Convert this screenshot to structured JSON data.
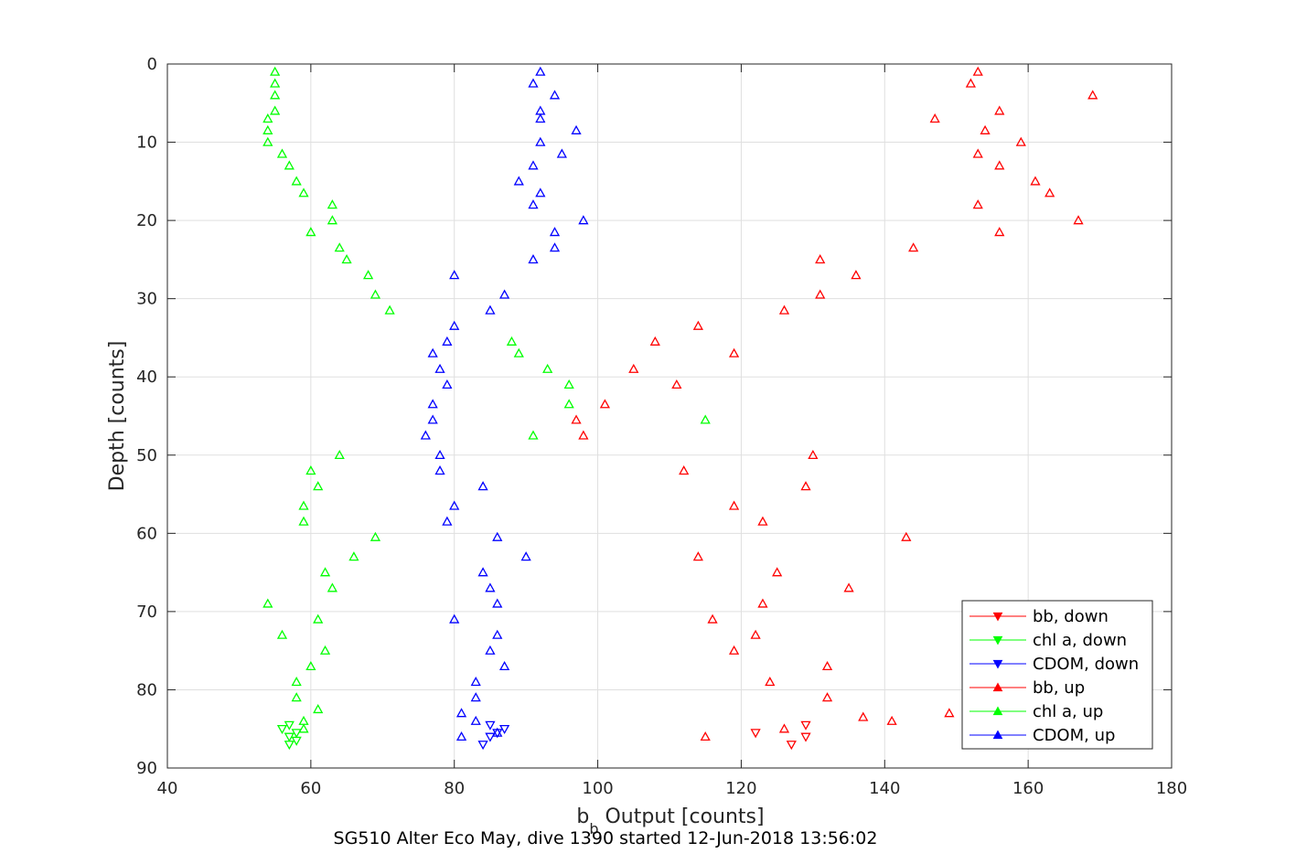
{
  "chart_data": {
    "type": "scatter",
    "xlabel_main": "b",
    "xlabel_sub": "b",
    "xlabel_rest": " Output [counts]",
    "ylabel": "Depth [counts]",
    "caption": "SG510 Alter Eco May, dive 1390 started 12-Jun-2018 13:56:02",
    "xlim": [
      40,
      180
    ],
    "ylim": [
      0,
      90
    ],
    "y_reversed": true,
    "grid": true,
    "legend_position": "bottom-right",
    "x_ticks": [
      "40",
      "60",
      "80",
      "100",
      "120",
      "140",
      "160",
      "180"
    ],
    "y_ticks": [
      "0",
      "10",
      "20",
      "30",
      "40",
      "50",
      "60",
      "70",
      "80",
      "90"
    ],
    "legend": [
      {
        "label": "bb, down",
        "color": "#ff0000",
        "marker": "down"
      },
      {
        "label": "chl a, down",
        "color": "#00ff00",
        "marker": "down"
      },
      {
        "label": "CDOM, down",
        "color": "#0000ff",
        "marker": "down"
      },
      {
        "label": "bb, up",
        "color": "#ff0000",
        "marker": "up"
      },
      {
        "label": "chl a, up",
        "color": "#00ff00",
        "marker": "up"
      },
      {
        "label": "CDOM, up",
        "color": "#0000ff",
        "marker": "up"
      }
    ],
    "series": [
      {
        "name": "bb, down",
        "color": "#ff0000",
        "marker": "down",
        "points": [
          [
            122,
            85.5
          ],
          [
            129,
            84.5
          ],
          [
            129,
            86
          ],
          [
            127,
            87
          ]
        ]
      },
      {
        "name": "chl a, down",
        "color": "#00ff00",
        "marker": "down",
        "points": [
          [
            57,
            84.5
          ],
          [
            56,
            85
          ],
          [
            58,
            85.5
          ],
          [
            57,
            86
          ],
          [
            58,
            86.5
          ],
          [
            57,
            87
          ]
        ]
      },
      {
        "name": "CDOM, down",
        "color": "#0000ff",
        "marker": "down",
        "points": [
          [
            85,
            84.5
          ],
          [
            87,
            85
          ],
          [
            86,
            85.5
          ],
          [
            85,
            86
          ],
          [
            84,
            87
          ]
        ]
      },
      {
        "name": "bb, up",
        "color": "#ff0000",
        "marker": "up",
        "points": [
          [
            153,
            1
          ],
          [
            152,
            2.5
          ],
          [
            169,
            4
          ],
          [
            156,
            6
          ],
          [
            147,
            7
          ],
          [
            154,
            8.5
          ],
          [
            159,
            10
          ],
          [
            153,
            11.5
          ],
          [
            156,
            13
          ],
          [
            161,
            15
          ],
          [
            163,
            16.5
          ],
          [
            153,
            18
          ],
          [
            167,
            20
          ],
          [
            156,
            21.5
          ],
          [
            144,
            23.5
          ],
          [
            131,
            25
          ],
          [
            136,
            27
          ],
          [
            131,
            29.5
          ],
          [
            126,
            31.5
          ],
          [
            114,
            33.5
          ],
          [
            108,
            35.5
          ],
          [
            119,
            37
          ],
          [
            105,
            39
          ],
          [
            111,
            41
          ],
          [
            101,
            43.5
          ],
          [
            97,
            45.5
          ],
          [
            98,
            47.5
          ],
          [
            130,
            50
          ],
          [
            112,
            52
          ],
          [
            129,
            54
          ],
          [
            119,
            56.5
          ],
          [
            123,
            58.5
          ],
          [
            143,
            60.5
          ],
          [
            114,
            63
          ],
          [
            125,
            65
          ],
          [
            135,
            67
          ],
          [
            123,
            69
          ],
          [
            116,
            71
          ],
          [
            122,
            73
          ],
          [
            119,
            75
          ],
          [
            132,
            77
          ],
          [
            124,
            79
          ],
          [
            132,
            81
          ],
          [
            149,
            83
          ],
          [
            137,
            83.5
          ],
          [
            141,
            84
          ],
          [
            126,
            85
          ],
          [
            115,
            86
          ]
        ]
      },
      {
        "name": "chl a, up",
        "color": "#00ff00",
        "marker": "up",
        "points": [
          [
            55,
            1
          ],
          [
            55,
            2.5
          ],
          [
            55,
            4
          ],
          [
            55,
            6
          ],
          [
            54,
            7
          ],
          [
            54,
            8.5
          ],
          [
            54,
            10
          ],
          [
            56,
            11.5
          ],
          [
            57,
            13
          ],
          [
            58,
            15
          ],
          [
            59,
            16.5
          ],
          [
            63,
            18
          ],
          [
            63,
            20
          ],
          [
            60,
            21.5
          ],
          [
            64,
            23.5
          ],
          [
            65,
            25
          ],
          [
            68,
            27
          ],
          [
            69,
            29.5
          ],
          [
            71,
            31.5
          ],
          [
            88,
            35.5
          ],
          [
            89,
            37
          ],
          [
            93,
            39
          ],
          [
            96,
            41
          ],
          [
            96,
            43.5
          ],
          [
            115,
            45.5
          ],
          [
            91,
            47.5
          ],
          [
            64,
            50
          ],
          [
            60,
            52
          ],
          [
            61,
            54
          ],
          [
            59,
            56.5
          ],
          [
            59,
            58.5
          ],
          [
            69,
            60.5
          ],
          [
            66,
            63
          ],
          [
            62,
            65
          ],
          [
            63,
            67
          ],
          [
            54,
            69
          ],
          [
            61,
            71
          ],
          [
            56,
            73
          ],
          [
            62,
            75
          ],
          [
            60,
            77
          ],
          [
            58,
            79
          ],
          [
            58,
            81
          ],
          [
            61,
            82.5
          ],
          [
            59,
            84
          ],
          [
            59,
            85
          ]
        ]
      },
      {
        "name": "CDOM, up",
        "color": "#0000ff",
        "marker": "up",
        "points": [
          [
            92,
            1
          ],
          [
            91,
            2.5
          ],
          [
            94,
            4
          ],
          [
            92,
            6
          ],
          [
            92,
            7
          ],
          [
            97,
            8.5
          ],
          [
            92,
            10
          ],
          [
            95,
            11.5
          ],
          [
            91,
            13
          ],
          [
            89,
            15
          ],
          [
            92,
            16.5
          ],
          [
            91,
            18
          ],
          [
            98,
            20
          ],
          [
            94,
            21.5
          ],
          [
            94,
            23.5
          ],
          [
            91,
            25
          ],
          [
            80,
            27
          ],
          [
            87,
            29.5
          ],
          [
            85,
            31.5
          ],
          [
            80,
            33.5
          ],
          [
            79,
            35.5
          ],
          [
            77,
            37
          ],
          [
            78,
            39
          ],
          [
            79,
            41
          ],
          [
            77,
            43.5
          ],
          [
            77,
            45.5
          ],
          [
            76,
            47.5
          ],
          [
            78,
            50
          ],
          [
            78,
            52
          ],
          [
            84,
            54
          ],
          [
            80,
            56.5
          ],
          [
            79,
            58.5
          ],
          [
            86,
            60.5
          ],
          [
            90,
            63
          ],
          [
            84,
            65
          ],
          [
            85,
            67
          ],
          [
            86,
            69
          ],
          [
            80,
            71
          ],
          [
            86,
            73
          ],
          [
            85,
            75
          ],
          [
            87,
            77
          ],
          [
            83,
            79
          ],
          [
            83,
            81
          ],
          [
            81,
            83
          ],
          [
            83,
            84
          ],
          [
            81,
            86
          ],
          [
            86,
            85.5
          ]
        ]
      }
    ]
  }
}
